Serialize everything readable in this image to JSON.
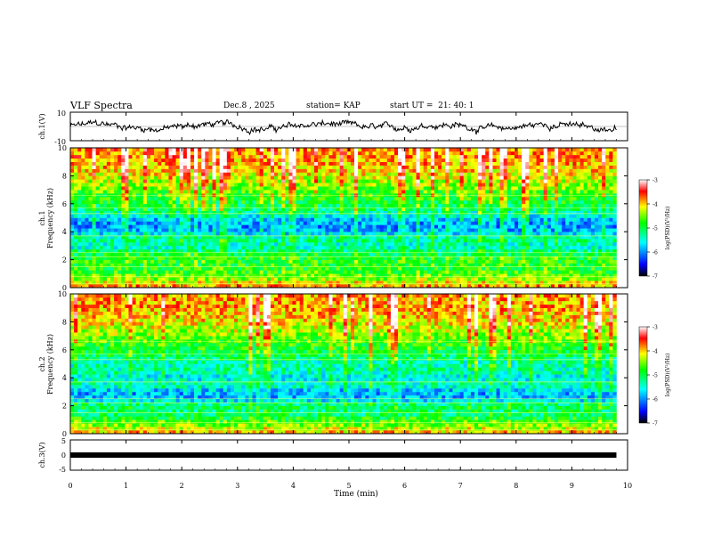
{
  "header": {
    "title": "VLF Spectra",
    "date": "Dec.8 , 2025",
    "station": "station= KAP",
    "start": "start UT =  21: 40: 1"
  },
  "chart_data": [
    {
      "type": "line",
      "name": "ch1-waveform",
      "ylabel": "ch.1(V)",
      "ylim": [
        -10,
        10
      ],
      "yticks": [
        "10",
        "-10"
      ],
      "x_range_min": [
        0,
        9.8
      ],
      "description_series": "noisy voltage waveform around 0 V, amplitude roughly within -8 to 8 V"
    },
    {
      "type": "heatmap",
      "name": "ch1-spectrogram",
      "ylabel": "ch.1\nFrequency (kHz)",
      "ylim": [
        0,
        10
      ],
      "yticks": [
        "0",
        "2",
        "4",
        "6",
        "8",
        "10"
      ],
      "z_quantity": "log(PSD)(V²/Hz)",
      "zlim": [
        -7,
        -3
      ],
      "colorbar_ticks": [
        "-3",
        "-4",
        "-5",
        "-6",
        "-7"
      ],
      "band_profile_khz": [
        {
          "f": 0.0,
          "v": -3.8
        },
        {
          "f": 0.5,
          "v": -4.3
        },
        {
          "f": 1.0,
          "v": -4.7
        },
        {
          "f": 1.5,
          "v": -4.9
        },
        {
          "f": 2.0,
          "v": -4.8
        },
        {
          "f": 2.5,
          "v": -5.1
        },
        {
          "f": 3.0,
          "v": -5.5
        },
        {
          "f": 3.5,
          "v": -5.2
        },
        {
          "f": 4.0,
          "v": -5.8
        },
        {
          "f": 4.5,
          "v": -6.0
        },
        {
          "f": 5.0,
          "v": -5.7
        },
        {
          "f": 5.5,
          "v": -5.2
        },
        {
          "f": 6.0,
          "v": -5.0
        },
        {
          "f": 6.5,
          "v": -4.8
        },
        {
          "f": 7.0,
          "v": -4.6
        },
        {
          "f": 7.5,
          "v": -4.4
        },
        {
          "f": 8.0,
          "v": -4.2
        },
        {
          "f": 8.5,
          "v": -4.0
        },
        {
          "f": 9.0,
          "v": -3.9
        },
        {
          "f": 9.5,
          "v": -3.8
        },
        {
          "f": 10.0,
          "v": -3.8
        }
      ]
    },
    {
      "type": "heatmap",
      "name": "ch2-spectrogram",
      "ylabel": "ch.2\nFrequency (kHz)",
      "ylim": [
        0,
        10
      ],
      "yticks": [
        "0",
        "2",
        "4",
        "6",
        "8",
        "10"
      ],
      "z_quantity": "log(PSD)(V²/Hz)",
      "zlim": [
        -7,
        -3
      ],
      "colorbar_ticks": [
        "-3",
        "-4",
        "-5",
        "-6",
        "-7"
      ],
      "band_profile_khz": [
        {
          "f": 0.0,
          "v": -3.9
        },
        {
          "f": 0.5,
          "v": -4.4
        },
        {
          "f": 1.0,
          "v": -4.8
        },
        {
          "f": 1.5,
          "v": -5.2
        },
        {
          "f": 2.0,
          "v": -5.0
        },
        {
          "f": 2.5,
          "v": -5.8
        },
        {
          "f": 3.0,
          "v": -5.9
        },
        {
          "f": 3.5,
          "v": -5.3
        },
        {
          "f": 4.0,
          "v": -5.6
        },
        {
          "f": 4.5,
          "v": -5.3
        },
        {
          "f": 5.0,
          "v": -5.4
        },
        {
          "f": 5.5,
          "v": -5.1
        },
        {
          "f": 6.0,
          "v": -4.9
        },
        {
          "f": 6.5,
          "v": -4.7
        },
        {
          "f": 7.0,
          "v": -4.5
        },
        {
          "f": 7.5,
          "v": -4.3
        },
        {
          "f": 8.0,
          "v": -4.1
        },
        {
          "f": 8.5,
          "v": -4.0
        },
        {
          "f": 9.0,
          "v": -3.9
        },
        {
          "f": 9.5,
          "v": -3.9
        },
        {
          "f": 10.0,
          "v": -3.9
        }
      ]
    },
    {
      "type": "line",
      "name": "ch3-signal",
      "ylabel": "ch.3(V)",
      "ylim": [
        -5,
        5
      ],
      "yticks": [
        "5",
        "0",
        "-5"
      ],
      "constant_value": 0,
      "x_range_min": [
        0,
        9.8
      ]
    }
  ],
  "x_axis": {
    "label": "Time (min)",
    "xlim": [
      0,
      10
    ],
    "ticks": [
      "0",
      "1",
      "2",
      "3",
      "4",
      "5",
      "6",
      "7",
      "8",
      "9",
      "10"
    ]
  },
  "colormap": [
    "#000000",
    "#0000ff",
    "#00ffff",
    "#00ff00",
    "#ffff00",
    "#ff0000",
    "#ffffff"
  ]
}
